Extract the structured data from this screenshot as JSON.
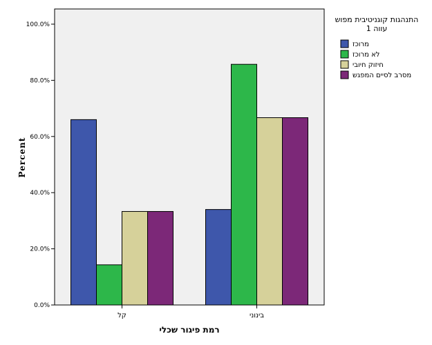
{
  "chart_data": {
    "type": "bar",
    "ylabel": "Percent",
    "xlabel": "רמת פיגור שכלי",
    "ylim": [
      0,
      100
    ],
    "yticks": [
      0,
      20,
      40,
      60,
      80,
      100
    ],
    "ytick_labels": [
      "0.0%",
      "20.0%",
      "40.0%",
      "60.0%",
      "80.0%",
      "100.0%"
    ],
    "categories": [
      "קל",
      "בינוני"
    ],
    "legend_title_lines": [
      "התנהגות קוגניטיבית מפוש",
      "עווה 1"
    ],
    "series": [
      {
        "name": "מרוכז",
        "color": "#3e57ab",
        "values": [
          66.0,
          34.0
        ]
      },
      {
        "name": "לא מרוכז",
        "color": "#2db74a",
        "values": [
          14.3,
          85.7
        ]
      },
      {
        "name": "חיזוק חיובי",
        "color": "#d6d19a",
        "values": [
          33.3,
          66.7
        ]
      },
      {
        "name": "מסרב לסיים המפגש",
        "color": "#7c2878",
        "values": [
          33.3,
          66.7
        ]
      }
    ],
    "plot_background": "#f0f0f0",
    "grid": false,
    "legend_position": "right"
  }
}
